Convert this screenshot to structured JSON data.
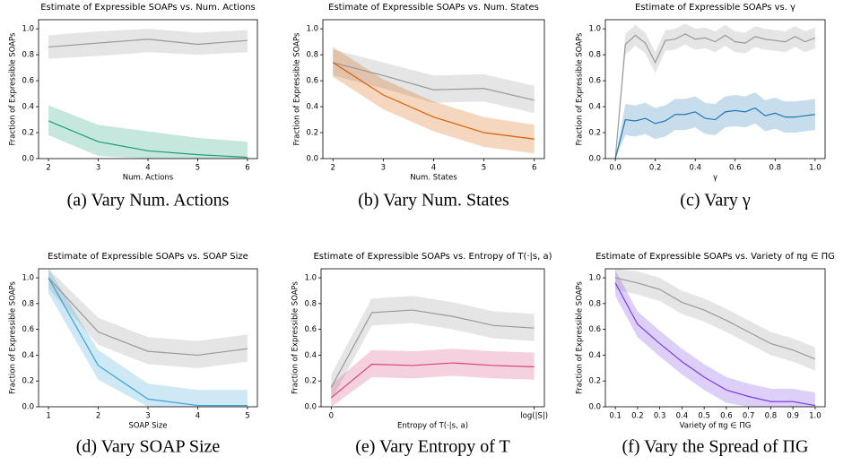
{
  "chart_data": [
    {
      "type": "line",
      "title": "Estimate of Expressible SOAPs vs. Num. Actions",
      "x_label": "Num. Actions",
      "y_label": "Fraction of Expressible SOAPs",
      "caption": "(a) Vary Num. Actions",
      "x": [
        2,
        3,
        4,
        5,
        6
      ],
      "xlim": [
        1.8,
        6.2
      ],
      "xticks": [
        2,
        3,
        4,
        5,
        6
      ],
      "ylim": [
        0,
        1.07
      ],
      "yticks": [
        {
          "value": 0,
          "label": "0.0"
        },
        0.2,
        0.4,
        0.6,
        0.8,
        {
          "value": 1,
          "label": "1.0"
        }
      ],
      "series": [
        {
          "color": "#999999",
          "values": [
            0.86,
            0.89,
            0.92,
            0.88,
            0.91
          ],
          "lower": [
            0.77,
            0.79,
            0.82,
            0.8,
            0.82
          ],
          "upper": [
            0.95,
            0.98,
            1.0,
            0.97,
            0.99
          ]
        },
        {
          "color": "#1b9e77",
          "values": [
            0.29,
            0.13,
            0.06,
            0.03,
            0.01
          ],
          "lower": [
            0.18,
            0.02,
            0,
            0,
            0
          ],
          "upper": [
            0.41,
            0.26,
            0.21,
            0.16,
            0.13
          ]
        }
      ]
    },
    {
      "type": "line",
      "title": "Estimate of Expressible SOAPs vs. Num. States",
      "x_label": "Num. States",
      "y_label": "Fraction of Expressible SOAPs",
      "caption": "(b) Vary Num. States",
      "x": [
        2,
        3,
        4,
        5,
        6
      ],
      "xlim": [
        1.8,
        6.2
      ],
      "xticks": [
        2,
        3,
        4,
        5,
        6
      ],
      "ylim": [
        0,
        1.07
      ],
      "yticks": [
        {
          "value": 0,
          "label": "0.0"
        },
        0.2,
        0.4,
        0.6,
        0.8,
        {
          "value": 1,
          "label": "1.0"
        }
      ],
      "series": [
        {
          "color": "#999999",
          "values": [
            0.74,
            0.64,
            0.53,
            0.54,
            0.45
          ],
          "lower": [
            0.64,
            0.54,
            0.43,
            0.44,
            0.35
          ],
          "upper": [
            0.84,
            0.74,
            0.64,
            0.65,
            0.56
          ]
        },
        {
          "color": "#d95f02",
          "values": [
            0.74,
            0.49,
            0.32,
            0.2,
            0.15
          ],
          "lower": [
            0.63,
            0.38,
            0.21,
            0.09,
            0.04
          ],
          "upper": [
            0.86,
            0.61,
            0.44,
            0.32,
            0.26
          ]
        }
      ]
    },
    {
      "type": "line",
      "title": "Estimate of Expressible SOAPs vs. γ",
      "x_label": "γ",
      "y_label": "Fraction of Expressible SOAPs",
      "caption": "(c) Vary γ",
      "x": [
        0,
        0.05,
        0.1,
        0.15,
        0.2,
        0.25,
        0.3,
        0.35,
        0.4,
        0.45,
        0.5,
        0.55,
        0.6,
        0.65,
        0.7,
        0.75,
        0.8,
        0.85,
        0.9,
        0.95,
        1.0
      ],
      "xlim": [
        -0.05,
        1.05
      ],
      "xticks": [
        {
          "value": 0,
          "label": "0.0"
        },
        0.2,
        0.4,
        0.6,
        0.8,
        {
          "value": 1,
          "label": "1.0"
        }
      ],
      "ylim": [
        0,
        1.07
      ],
      "yticks": [
        {
          "value": 0,
          "label": "0.0"
        },
        0.2,
        0.4,
        0.6,
        0.8,
        {
          "value": 1,
          "label": "1.0"
        }
      ],
      "series": [
        {
          "color": "#999999",
          "values": [
            0,
            0.88,
            0.95,
            0.89,
            0.74,
            0.91,
            0.92,
            0.96,
            0.92,
            0.93,
            0.9,
            0.95,
            0.9,
            0.89,
            0.94,
            0.92,
            0.91,
            0.9,
            0.94,
            0.9,
            0.93
          ],
          "lower": [
            0,
            0.8,
            0.87,
            0.81,
            0.66,
            0.83,
            0.84,
            0.88,
            0.84,
            0.85,
            0.82,
            0.87,
            0.82,
            0.81,
            0.86,
            0.84,
            0.83,
            0.82,
            0.86,
            0.82,
            0.85
          ],
          "upper": [
            0,
            0.96,
            1.03,
            0.97,
            0.82,
            0.99,
            1.0,
            1.04,
            1.0,
            1.01,
            0.98,
            1.03,
            0.98,
            0.97,
            1.02,
            1.0,
            0.99,
            0.98,
            1.02,
            0.98,
            1.01
          ]
        },
        {
          "color": "#1f77b4",
          "values": [
            0,
            0.3,
            0.29,
            0.31,
            0.27,
            0.29,
            0.34,
            0.34,
            0.36,
            0.31,
            0.3,
            0.36,
            0.37,
            0.36,
            0.39,
            0.33,
            0.35,
            0.32,
            0.32,
            0.33,
            0.34
          ],
          "lower": [
            0,
            0.18,
            0.17,
            0.19,
            0.15,
            0.17,
            0.22,
            0.22,
            0.24,
            0.19,
            0.18,
            0.24,
            0.25,
            0.24,
            0.27,
            0.21,
            0.23,
            0.2,
            0.2,
            0.21,
            0.22
          ],
          "upper": [
            0,
            0.42,
            0.41,
            0.43,
            0.39,
            0.41,
            0.46,
            0.46,
            0.48,
            0.43,
            0.42,
            0.48,
            0.49,
            0.48,
            0.51,
            0.45,
            0.47,
            0.44,
            0.44,
            0.45,
            0.46
          ]
        }
      ]
    },
    {
      "type": "line",
      "title": "Estimate of Expressible SOAPs vs. SOAP Size",
      "x_label": "SOAP Size",
      "y_label": "Fraction of Expressible SOAPs",
      "caption": "(d) Vary SOAP Size",
      "x": [
        1,
        2,
        3,
        4,
        5
      ],
      "xlim": [
        0.8,
        5.2
      ],
      "xticks": [
        1,
        2,
        3,
        4,
        5
      ],
      "ylim": [
        0,
        1.07
      ],
      "yticks": [
        {
          "value": 0,
          "label": "0.0"
        },
        0.2,
        0.4,
        0.6,
        0.8,
        {
          "value": 1,
          "label": "1.0"
        }
      ],
      "series": [
        {
          "color": "#999999",
          "values": [
            1.0,
            0.58,
            0.43,
            0.4,
            0.45
          ],
          "lower": [
            0.92,
            0.48,
            0.33,
            0.3,
            0.35
          ],
          "upper": [
            1.07,
            0.69,
            0.54,
            0.51,
            0.56
          ]
        },
        {
          "color": "#3aa3d6",
          "values": [
            1.0,
            0.32,
            0.06,
            0.01,
            0.01
          ],
          "lower": [
            0.88,
            0.21,
            0,
            0,
            0
          ],
          "upper": [
            1.07,
            0.44,
            0.18,
            0.13,
            0.13
          ]
        }
      ]
    },
    {
      "type": "line",
      "title": "Estimate of Expressible SOAPs vs. Entropy of T(·|s, a)",
      "x_label": "Entropy of T(·|s, a)",
      "y_label": "Fraction of Expressible SOAPs",
      "caption": "(e) Vary Entropy of T",
      "x": [
        0,
        0.2,
        0.4,
        0.6,
        0.8,
        1.0
      ],
      "xlim": [
        -0.05,
        1.05
      ],
      "xticks": [
        0,
        {
          "value": 1,
          "label": "log(|S|)"
        }
      ],
      "ylim": [
        0,
        1.07
      ],
      "yticks": [
        {
          "value": 0,
          "label": "0.0"
        },
        0.2,
        0.4,
        0.6,
        0.8,
        {
          "value": 1,
          "label": "1.0"
        }
      ],
      "series": [
        {
          "color": "#999999",
          "values": [
            0.15,
            0.73,
            0.75,
            0.7,
            0.63,
            0.61
          ],
          "lower": [
            0.05,
            0.63,
            0.65,
            0.6,
            0.53,
            0.51
          ],
          "upper": [
            0.25,
            0.84,
            0.86,
            0.81,
            0.74,
            0.72
          ]
        },
        {
          "color": "#d6457a",
          "values": [
            0.07,
            0.33,
            0.32,
            0.34,
            0.32,
            0.31
          ],
          "lower": [
            0,
            0.23,
            0.22,
            0.24,
            0.22,
            0.21
          ],
          "upper": [
            0.17,
            0.44,
            0.43,
            0.45,
            0.43,
            0.42
          ]
        }
      ]
    },
    {
      "type": "line",
      "title": "Estimate of Expressible SOAPs vs. Variety of πg ∈ ΠG",
      "x_label": "Variety of πg ∈ ΠG",
      "y_label": "Fraction of Expressible SOAPs",
      "caption": "(f) Vary the Spread of ΠG",
      "x": [
        0.1,
        0.2,
        0.3,
        0.4,
        0.5,
        0.6,
        0.7,
        0.8,
        0.9,
        1.0
      ],
      "xlim": [
        0.055,
        1.045
      ],
      "xticks": [
        0.1,
        0.2,
        0.3,
        0.4,
        0.5,
        0.6,
        0.7,
        0.8,
        0.9,
        {
          "value": 1,
          "label": "1.0"
        }
      ],
      "ylim": [
        0,
        1.07
      ],
      "yticks": [
        {
          "value": 0,
          "label": "0.0"
        },
        0.2,
        0.4,
        0.6,
        0.8,
        {
          "value": 1,
          "label": "1.0"
        }
      ],
      "series": [
        {
          "color": "#999999",
          "values": [
            1.0,
            0.96,
            0.91,
            0.81,
            0.75,
            0.67,
            0.58,
            0.49,
            0.44,
            0.37
          ],
          "lower": [
            0.91,
            0.87,
            0.82,
            0.72,
            0.66,
            0.58,
            0.49,
            0.4,
            0.35,
            0.28
          ],
          "upper": [
            1.07,
            1.05,
            1.0,
            0.9,
            0.84,
            0.76,
            0.67,
            0.58,
            0.53,
            0.46
          ]
        },
        {
          "color": "#7b3fe4",
          "values": [
            0.96,
            0.64,
            0.49,
            0.35,
            0.23,
            0.13,
            0.08,
            0.04,
            0.04,
            0.01
          ],
          "lower": [
            0.86,
            0.54,
            0.39,
            0.25,
            0.13,
            0.03,
            0,
            0,
            0,
            0
          ],
          "upper": [
            1.06,
            0.74,
            0.59,
            0.45,
            0.33,
            0.23,
            0.18,
            0.14,
            0.14,
            0.11
          ]
        }
      ]
    }
  ]
}
